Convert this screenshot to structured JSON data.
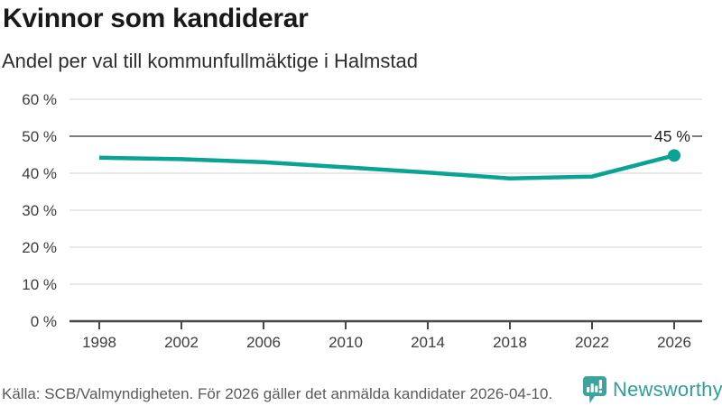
{
  "header": {
    "title": "Kvinnor som kandiderar",
    "subtitle": "Andel per val till kommunfullmäktige i Halmstad"
  },
  "chart_data": {
    "type": "line",
    "title": "Kvinnor som kandiderar",
    "subtitle": "Andel per val till kommunfullmäktige i Halmstad",
    "x": [
      1998,
      2002,
      2006,
      2010,
      2014,
      2018,
      2022,
      2026
    ],
    "series": [
      {
        "name": "Kvinnor som kandiderar",
        "values": [
          44.2,
          43.8,
          43.0,
          41.6,
          40.2,
          38.6,
          39.1,
          44.8
        ]
      }
    ],
    "end_label": "45 %",
    "xlabel": "",
    "ylabel": "",
    "ylim": [
      0,
      60
    ],
    "y_ticks": [
      {
        "value": 0,
        "label": "0 %"
      },
      {
        "value": 10,
        "label": "10 %"
      },
      {
        "value": 20,
        "label": "20 %"
      },
      {
        "value": 30,
        "label": "30 %"
      },
      {
        "value": 40,
        "label": "40 %"
      },
      {
        "value": 50,
        "label": "50 %"
      },
      {
        "value": 60,
        "label": "60 %"
      }
    ],
    "reference_line": 50,
    "grid": true,
    "legend_position": "none",
    "line_color": "#0aa294",
    "reference_line_color": "#7c7c7c",
    "gridline_color": "#e2e2e2",
    "axis_color": "#474747",
    "tick_label_color": "#3d3d3d",
    "end_label_color": "#1f1f1f"
  },
  "footer": {
    "source": "Källa: SCB/Valmyndigheten. För 2026 gäller det anmälda kandidater 2026-04-10.",
    "logo_text": "Newsworthy",
    "logo_color": "#3ba49c"
  }
}
